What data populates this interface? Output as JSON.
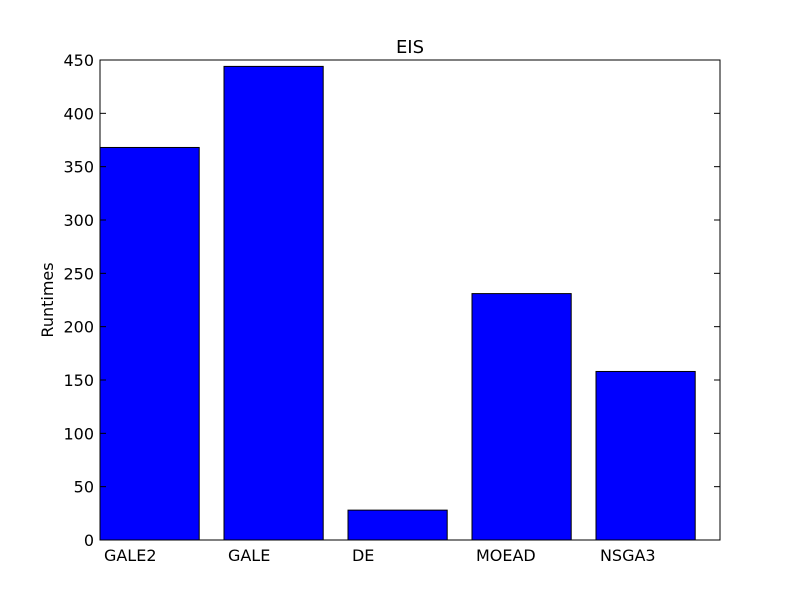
{
  "chart_data": {
    "type": "bar",
    "title": "EIS",
    "xlabel": "",
    "ylabel": "Runtimes",
    "categories": [
      "GALE2",
      "GALE",
      "DE",
      "MOEAD",
      "NSGA3"
    ],
    "values": [
      368,
      444,
      28,
      231,
      158
    ],
    "ylim": [
      0,
      450
    ],
    "yticks": [
      0,
      50,
      100,
      150,
      200,
      250,
      300,
      350,
      400,
      450
    ],
    "bar_color": "#0000ff",
    "edge_color": "#000000",
    "grid": false,
    "legend": "none"
  }
}
